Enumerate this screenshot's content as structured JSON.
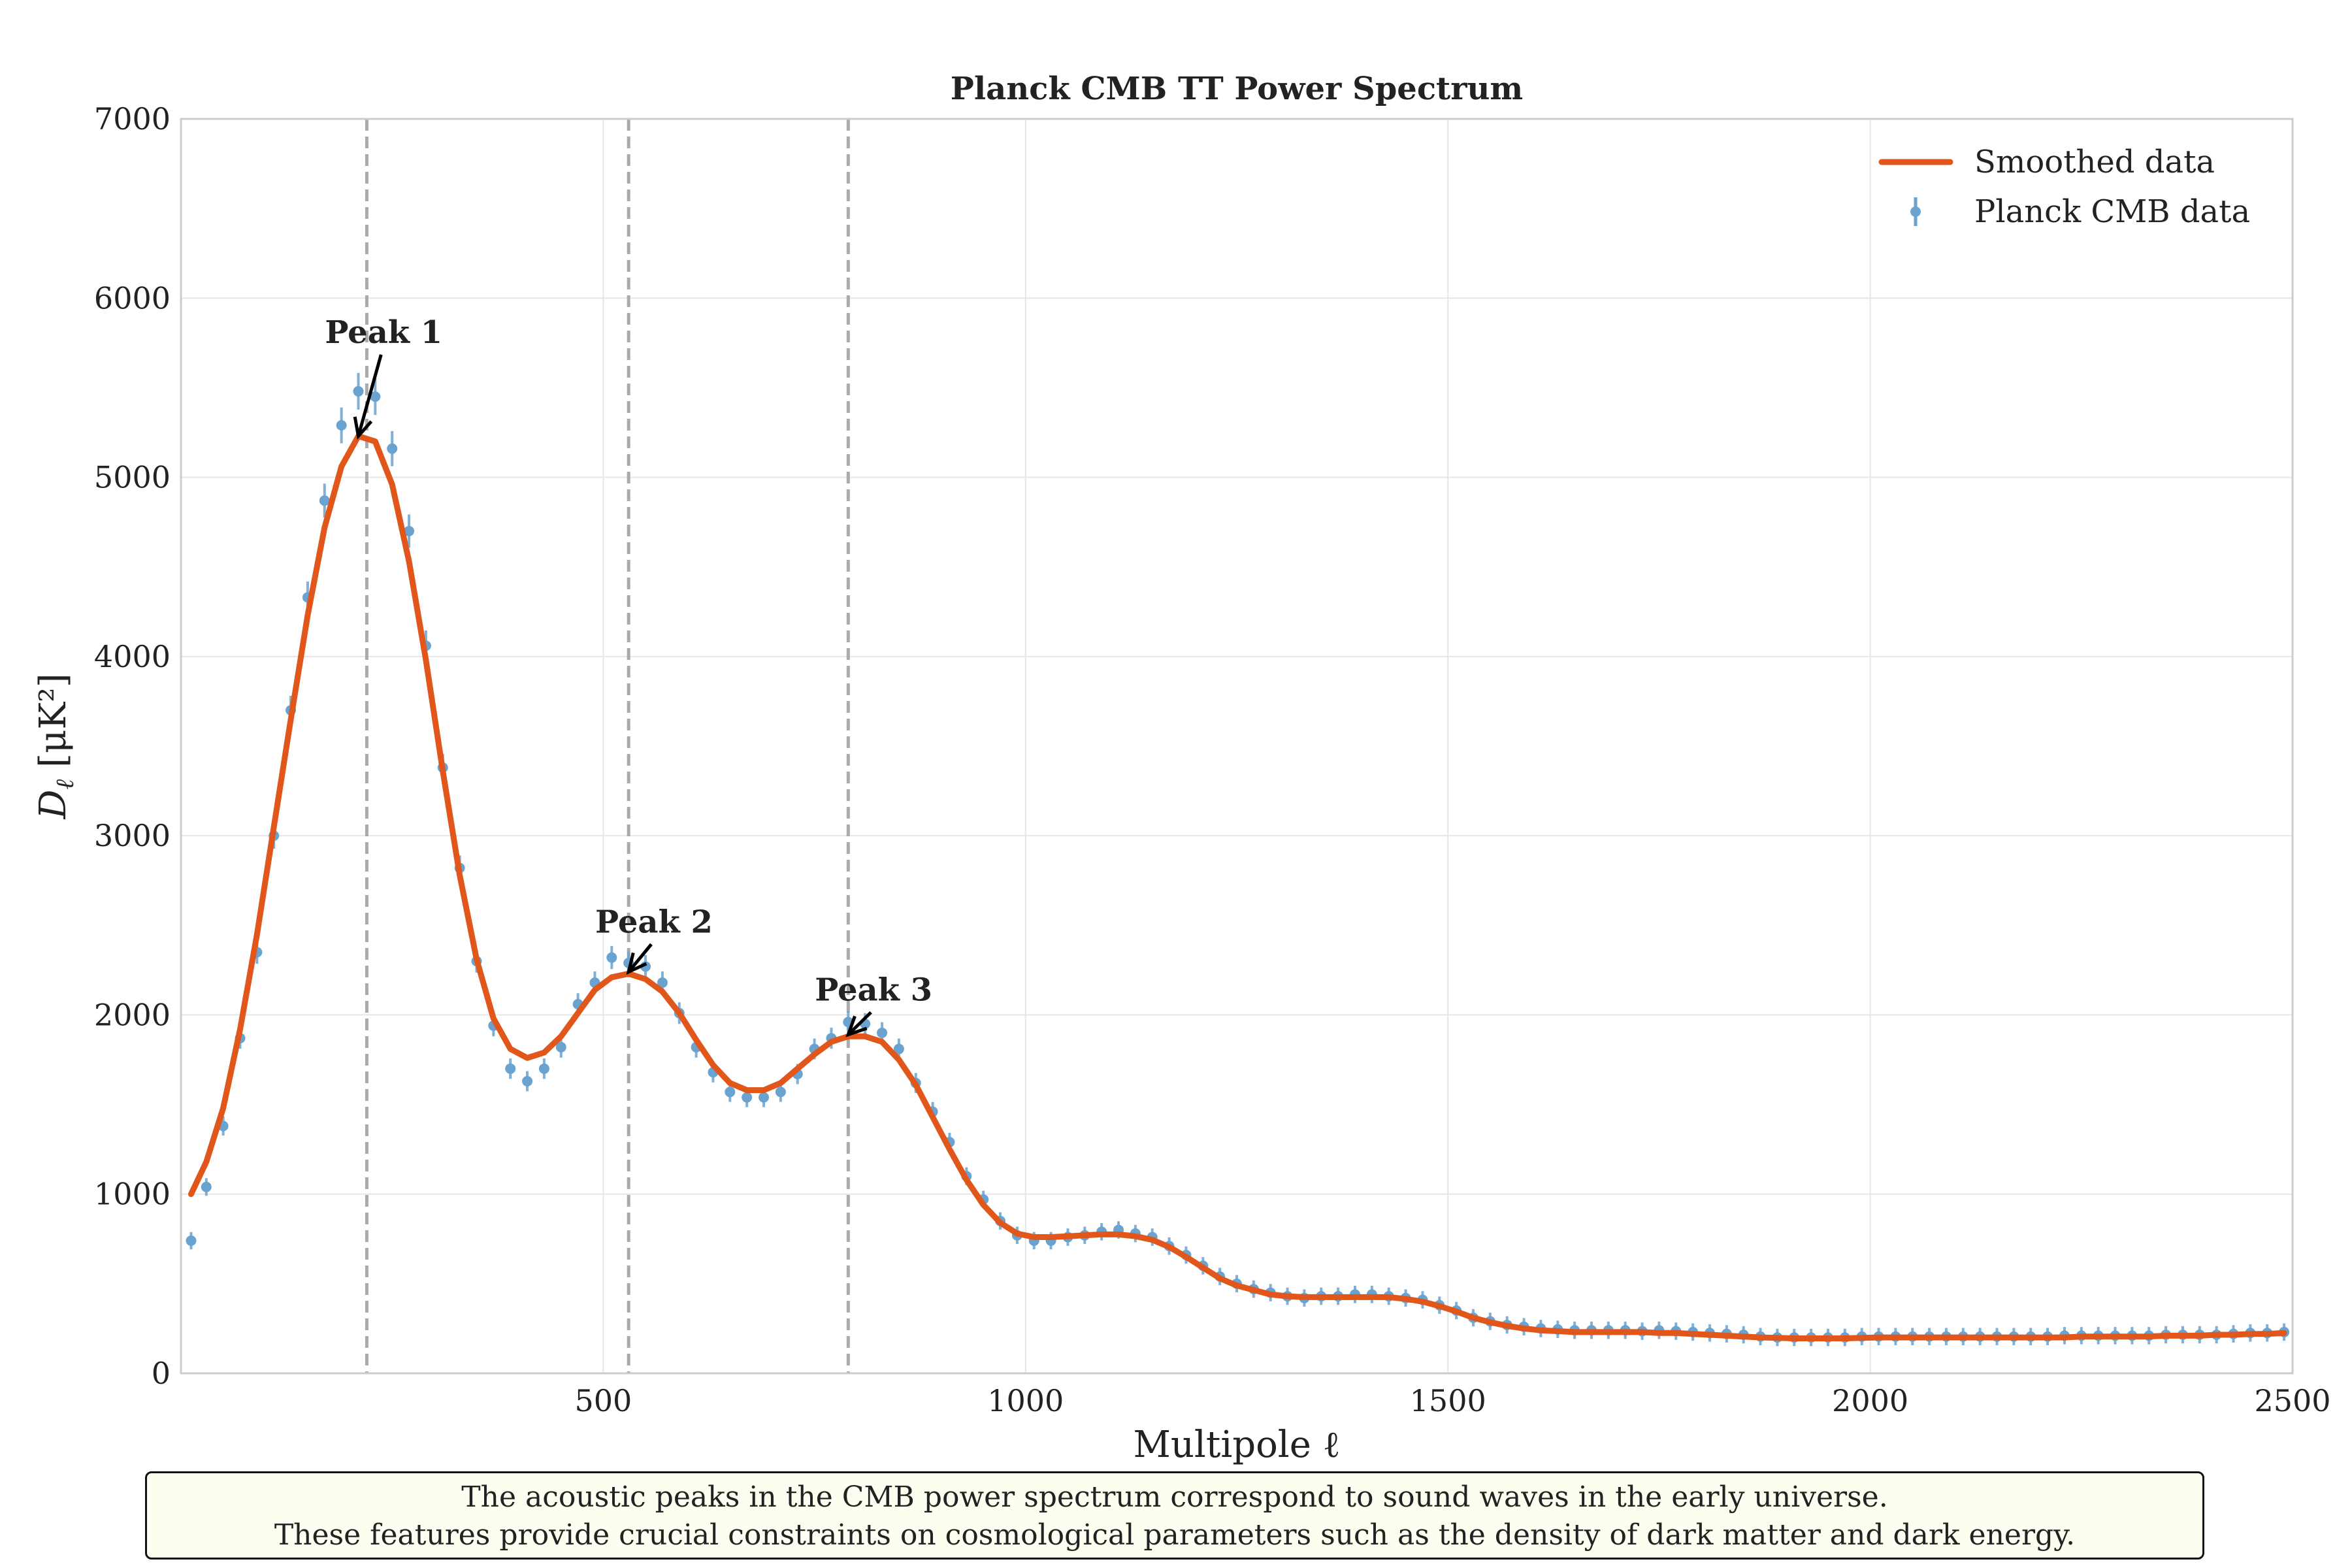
{
  "chart_data": {
    "type": "scatter",
    "title": "Planck CMB TT Power Spectrum",
    "xlabel": "Multipole ℓ",
    "ylabel": "D",
    "ylabel_sub": "ℓ",
    "ylabel_units": "[μK²]",
    "xlim": [
      0,
      2500
    ],
    "ylim": [
      0,
      7000
    ],
    "xticks": [
      500,
      1000,
      1500,
      2000,
      2500
    ],
    "xtick_labels": [
      "500",
      "1000",
      "1500",
      "2000",
      "2500"
    ],
    "yticks": [
      0,
      1000,
      2000,
      3000,
      4000,
      5000,
      6000,
      7000
    ],
    "ytick_labels": [
      "0",
      "1000",
      "2000",
      "3000",
      "4000",
      "5000",
      "6000",
      "7000"
    ],
    "grid": true,
    "legend_position": "top-right",
    "colors": {
      "smoothed": "#e1561a",
      "data": "#6aa3cf",
      "vline": "#aaaaaa",
      "axis": "#cccccc"
    },
    "series": [
      {
        "name": "Planck CMB data",
        "kind": "errorbar",
        "x": [
          12,
          30,
          50,
          70,
          90,
          110,
          130,
          150,
          170,
          190,
          210,
          230,
          250,
          270,
          290,
          310,
          330,
          350,
          370,
          390,
          410,
          430,
          450,
          470,
          490,
          510,
          530,
          550,
          570,
          590,
          610,
          630,
          650,
          670,
          690,
          710,
          730,
          750,
          770,
          790,
          810,
          830,
          850,
          870,
          890,
          910,
          930,
          950,
          970,
          990,
          1010,
          1030,
          1050,
          1070,
          1090,
          1110,
          1130,
          1150,
          1170,
          1190,
          1210,
          1230,
          1250,
          1270,
          1290,
          1310,
          1330,
          1350,
          1370,
          1390,
          1410,
          1430,
          1450,
          1470,
          1490,
          1510,
          1530,
          1550,
          1570,
          1590,
          1610,
          1630,
          1650,
          1670,
          1690,
          1710,
          1730,
          1750,
          1770,
          1790,
          1810,
          1830,
          1850,
          1870,
          1890,
          1910,
          1930,
          1950,
          1970,
          1990,
          2010,
          2030,
          2050,
          2070,
          2090,
          2110,
          2130,
          2150,
          2170,
          2190,
          2210,
          2230,
          2250,
          2270,
          2290,
          2310,
          2330,
          2350,
          2370,
          2390,
          2410,
          2430,
          2450,
          2470,
          2490
        ],
        "y": [
          740,
          1040,
          1380,
          1870,
          2350,
          3000,
          3700,
          4330,
          4870,
          5290,
          5480,
          5450,
          5160,
          4700,
          4060,
          3380,
          2820,
          2300,
          1940,
          1700,
          1630,
          1700,
          1820,
          2060,
          2180,
          2320,
          2290,
          2270,
          2180,
          2010,
          1820,
          1680,
          1570,
          1540,
          1540,
          1570,
          1670,
          1810,
          1870,
          1960,
          1950,
          1900,
          1810,
          1620,
          1460,
          1290,
          1100,
          970,
          850,
          770,
          740,
          740,
          760,
          770,
          790,
          800,
          780,
          760,
          710,
          660,
          600,
          540,
          500,
          470,
          450,
          430,
          420,
          430,
          430,
          440,
          440,
          430,
          420,
          410,
          380,
          350,
          310,
          290,
          270,
          260,
          250,
          245,
          240,
          240,
          240,
          240,
          235,
          240,
          235,
          230,
          225,
          220,
          215,
          205,
          200,
          200,
          200,
          200,
          200,
          205,
          205,
          205,
          205,
          205,
          205,
          205,
          205,
          205,
          205,
          205,
          205,
          210,
          210,
          210,
          210,
          210,
          210,
          215,
          215,
          215,
          215,
          220,
          225,
          225,
          230
        ]
      },
      {
        "name": "Smoothed data",
        "kind": "line",
        "x": [
          12,
          30,
          50,
          70,
          90,
          110,
          130,
          150,
          170,
          190,
          210,
          230,
          250,
          270,
          290,
          310,
          330,
          350,
          370,
          390,
          410,
          430,
          450,
          470,
          490,
          510,
          530,
          550,
          570,
          590,
          610,
          630,
          650,
          670,
          690,
          710,
          730,
          750,
          770,
          790,
          810,
          830,
          850,
          870,
          890,
          910,
          930,
          950,
          970,
          990,
          1010,
          1030,
          1050,
          1070,
          1090,
          1110,
          1130,
          1150,
          1170,
          1190,
          1210,
          1230,
          1250,
          1270,
          1290,
          1310,
          1330,
          1350,
          1370,
          1390,
          1410,
          1430,
          1450,
          1470,
          1490,
          1510,
          1530,
          1550,
          1570,
          1590,
          1610,
          1630,
          1650,
          1670,
          1690,
          1710,
          1730,
          1750,
          1770,
          1790,
          1810,
          1830,
          1850,
          1870,
          1890,
          1910,
          1930,
          1950,
          1970,
          1990,
          2010,
          2030,
          2050,
          2070,
          2090,
          2110,
          2130,
          2150,
          2170,
          2190,
          2210,
          2230,
          2250,
          2270,
          2290,
          2310,
          2330,
          2350,
          2370,
          2390,
          2410,
          2430,
          2450,
          2470,
          2490
        ],
        "y": [
          1000,
          1180,
          1480,
          1920,
          2450,
          3050,
          3650,
          4230,
          4720,
          5060,
          5230,
          5200,
          4960,
          4530,
          3980,
          3360,
          2780,
          2310,
          1980,
          1810,
          1760,
          1790,
          1880,
          2010,
          2140,
          2210,
          2230,
          2200,
          2130,
          2010,
          1860,
          1720,
          1620,
          1580,
          1580,
          1620,
          1700,
          1780,
          1850,
          1880,
          1880,
          1850,
          1750,
          1610,
          1430,
          1250,
          1080,
          940,
          840,
          780,
          760,
          760,
          765,
          770,
          775,
          775,
          765,
          745,
          705,
          650,
          590,
          530,
          490,
          465,
          440,
          430,
          425,
          425,
          425,
          425,
          425,
          425,
          415,
          400,
          375,
          345,
          310,
          285,
          265,
          250,
          240,
          235,
          230,
          230,
          230,
          230,
          230,
          225,
          225,
          220,
          215,
          210,
          205,
          200,
          198,
          195,
          195,
          195,
          195,
          198,
          200,
          200,
          200,
          200,
          200,
          200,
          200,
          200,
          200,
          200,
          200,
          200,
          205,
          205,
          205,
          205,
          205,
          210,
          210,
          210,
          215,
          215,
          220,
          220,
          225
        ]
      }
    ],
    "vlines": [
      220,
      530,
      790
    ],
    "annotations": [
      {
        "label": "Peak 1",
        "text_x": 240,
        "text_y": 5750,
        "point_x": 210,
        "point_y": 5230
      },
      {
        "label": "Peak 2",
        "text_x": 560,
        "text_y": 2460,
        "point_x": 530,
        "point_y": 2240
      },
      {
        "label": "Peak 3",
        "text_x": 820,
        "text_y": 2080,
        "point_x": 790,
        "point_y": 1890
      }
    ]
  },
  "caption": {
    "line1": "The acoustic peaks in the CMB power spectrum correspond to sound waves in the early universe.",
    "line2": "These features provide crucial constraints on cosmological parameters such as the density of dark matter and dark energy."
  }
}
